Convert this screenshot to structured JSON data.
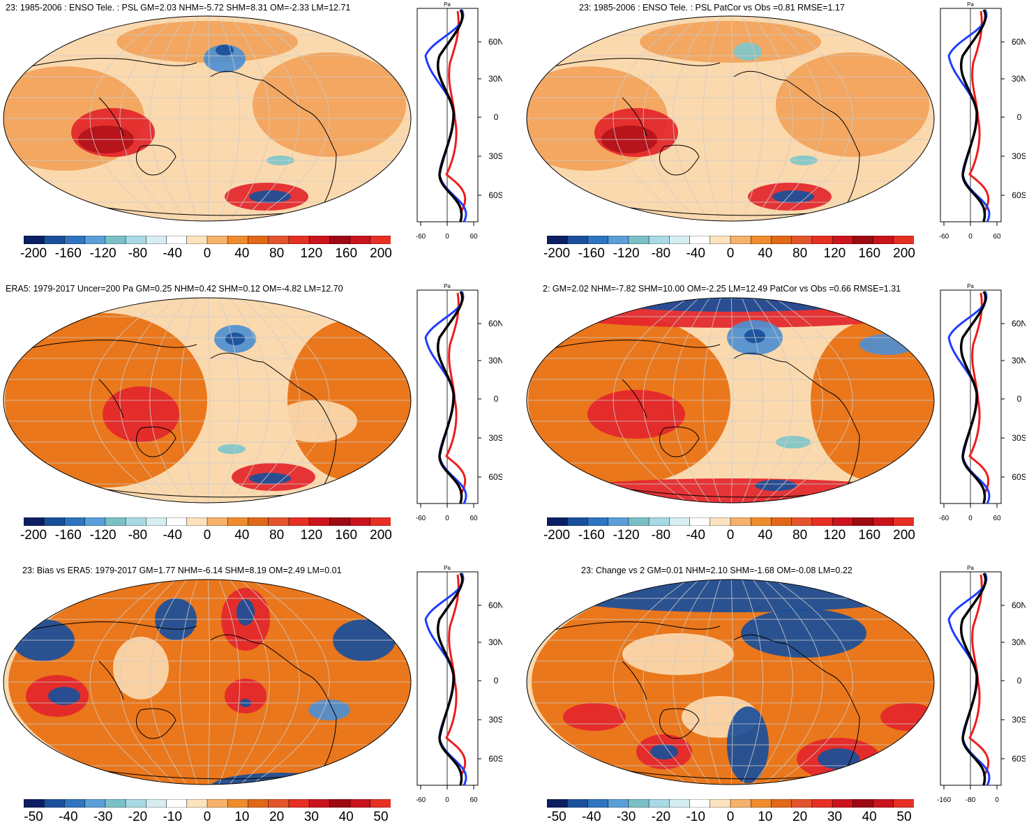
{
  "palette": [
    "#0b1f62",
    "#1a4f9a",
    "#2f74c0",
    "#5a9fd8",
    "#7cc0c7",
    "#a7dae4",
    "#d6eef2",
    "#ffffff",
    "#fde3bd",
    "#f6b16a",
    "#ef8c2e",
    "#e06818",
    "#e4542c",
    "#e63024",
    "#cc141c",
    "#9e0a14",
    "#c8141c",
    "#e63024"
  ],
  "colors": {
    "warm_dark": "#e86f0e",
    "warm_mid": "#f2a35a",
    "warm_light": "#fbd9ae",
    "red": "#e3262b",
    "deep_red": "#b3121a",
    "blue_dark": "#1a4f9a",
    "blue_mid": "#4f8fd0",
    "cyan": "#7fc7c9",
    "profile_model": "#1e3cff",
    "profile_obs": "#ee1c1c",
    "profile_mean": "#000000"
  },
  "panels": [
    {
      "title": "23: 1985-2006 : ENSO Tele. : PSL GM=2.03 NHM=-5.72 SHM=8.31 OM=-2.33 LM=12.71",
      "colorbar": [
        "-200",
        "-160",
        "-120",
        "-80",
        "-40",
        "0",
        "40",
        "80",
        "120",
        "160",
        "200"
      ],
      "profile": {
        "unit": "Pa",
        "x_ticks": [
          "-60",
          "0",
          "60"
        ],
        "lat_ticks": [
          "60N",
          "30N",
          "0",
          "30S",
          "60S"
        ]
      }
    },
    {
      "title": "23: 1985-2006 : ENSO Tele. : PSL PatCor vs Obs =0.81 RMSE=1.17",
      "colorbar": [
        "-200",
        "-160",
        "-120",
        "-80",
        "-40",
        "0",
        "40",
        "80",
        "120",
        "160",
        "200"
      ],
      "profile": {
        "unit": "Pa",
        "x_ticks": [
          "-60",
          "0",
          "60"
        ],
        "lat_ticks": [
          "60N",
          "30N",
          "0",
          "30S",
          "60S"
        ]
      }
    },
    {
      "title": "ERA5: 1979-2017 Uncer=200 Pa GM=0.25 NHM=0.42 SHM=0.12 OM=-4.82 LM=12.70",
      "colorbar": [
        "-200",
        "-160",
        "-120",
        "-80",
        "-40",
        "0",
        "40",
        "80",
        "120",
        "160",
        "200"
      ],
      "profile": {
        "unit": "Pa",
        "x_ticks": [
          "-60",
          "0",
          "60"
        ],
        "lat_ticks": [
          "60N",
          "30N",
          "0",
          "30S",
          "60S"
        ]
      }
    },
    {
      "title": "2: GM=2.02 NHM=-7.82 SHM=10.00 OM=-2.25 LM=12.49 PatCor vs Obs =0.66 RMSE=1.31",
      "colorbar": [
        "-200",
        "-160",
        "-120",
        "-80",
        "-40",
        "0",
        "40",
        "80",
        "120",
        "160",
        "200"
      ],
      "profile": {
        "unit": "Pa",
        "x_ticks": [
          "-60",
          "0",
          "60"
        ],
        "lat_ticks": [
          "60N",
          "30N",
          "0",
          "30S",
          "60S"
        ]
      }
    },
    {
      "title": "23: Bias vs ERA5: 1979-2017 GM=1.77 NHM=-6.14 SHM=8.19 OM=2.49 LM=0.01",
      "colorbar": [
        "-50",
        "-40",
        "-30",
        "-20",
        "-10",
        "0",
        "10",
        "20",
        "30",
        "40",
        "50"
      ],
      "profile": {
        "unit": "Pa",
        "x_ticks": [
          "-60",
          "0",
          "60"
        ],
        "lat_ticks": [
          "60N",
          "30N",
          "0",
          "30S",
          "60S"
        ]
      }
    },
    {
      "title": "23: Change vs 2 GM=0.01 NHM=2.10 SHM=-1.68 OM=-0.08 LM=0.22",
      "colorbar": [
        "-50",
        "-40",
        "-30",
        "-20",
        "-10",
        "0",
        "10",
        "20",
        "30",
        "40",
        "50"
      ],
      "profile": {
        "unit": "Pa",
        "x_ticks": [
          "-160",
          "-80",
          "0"
        ],
        "lat_ticks": [
          "60N",
          "30N",
          "0",
          "30S",
          "60S"
        ]
      }
    }
  ]
}
